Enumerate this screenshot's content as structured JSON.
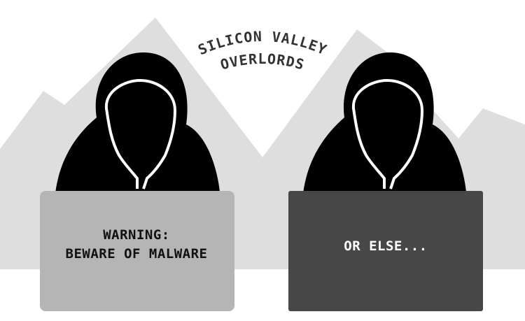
{
  "banner": {
    "line1": "SILICON VALLEY",
    "line2": "OVERLORDS"
  },
  "left_laptop": {
    "line1": "WARNING:",
    "line2": "BEWARE OF MALWARE"
  },
  "right_laptop": {
    "line1": "OR ELSE..."
  },
  "colors": {
    "mountains": "#dedede",
    "figure": "#000000",
    "hood_outline": "#ffffff",
    "left_laptop": "#b5b5b5",
    "right_laptop": "#474747"
  }
}
